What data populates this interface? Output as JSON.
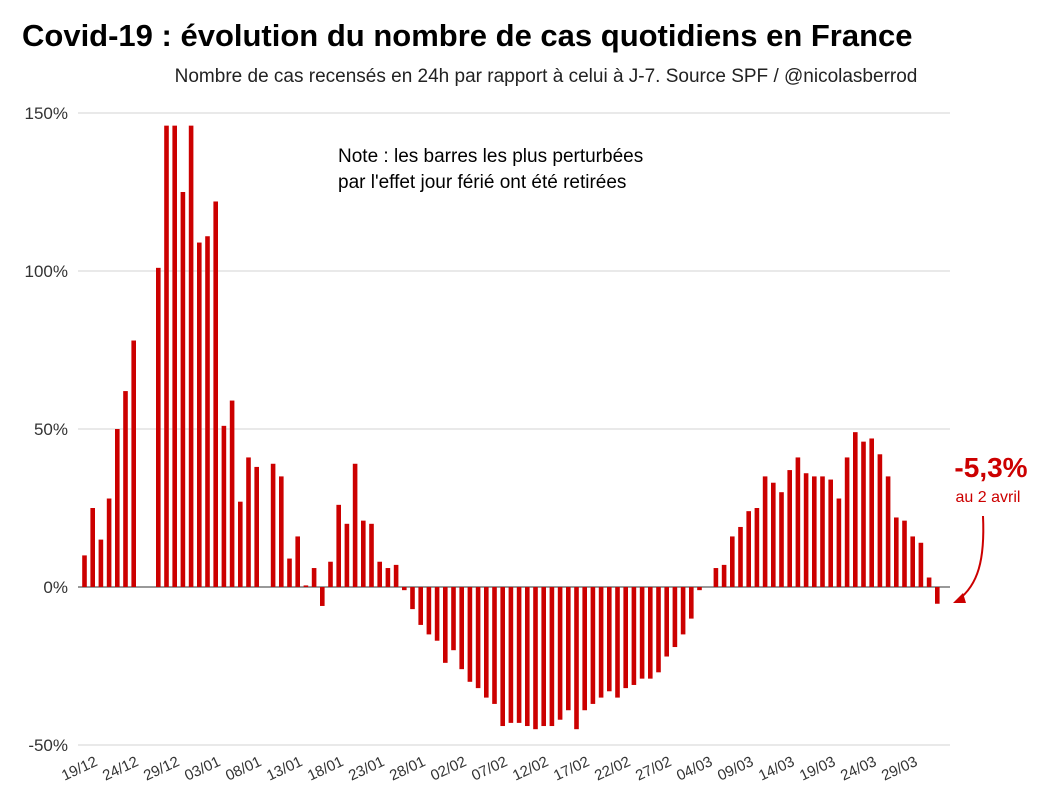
{
  "chart_data": {
    "type": "bar",
    "title": "Covid-19 : évolution du nombre de cas quotidiens en France",
    "subtitle": "Nombre de cas recensés en 24h par rapport à celui à J-7. Source SPF / @nicolasberrod",
    "note_lines": [
      "Note : les barres les plus perturbées",
      "par l'effet jour férié ont été retirées"
    ],
    "ylim": [
      -50,
      150
    ],
    "yticks": [
      150,
      100,
      50,
      0,
      -50
    ],
    "ytick_labels": [
      "150%",
      "100%",
      "50%",
      "0%",
      "-50%"
    ],
    "grid": true,
    "bar_color": "#cc0000",
    "x_tick_labels": [
      "19/12",
      "24/12",
      "29/12",
      "03/01",
      "08/01",
      "13/01",
      "18/01",
      "23/01",
      "28/01",
      "02/02",
      "07/02",
      "12/02",
      "17/02",
      "22/02",
      "27/02",
      "04/03",
      "09/03",
      "14/03",
      "19/03",
      "24/03",
      "29/03"
    ],
    "x_tick_start": "19/12",
    "x_tick_step_days": 5,
    "start_date": "19/12",
    "end_date": "02/04",
    "unit": "%",
    "values": [
      10,
      25,
      15,
      28,
      50,
      62,
      78,
      null,
      null,
      101,
      146,
      146,
      125,
      146,
      109,
      111,
      122,
      51,
      59,
      27,
      41,
      38,
      null,
      39,
      35,
      9,
      16,
      0.5,
      6,
      -6,
      8,
      26,
      20,
      39,
      21,
      20,
      8,
      6,
      7,
      -1,
      -7,
      -12,
      -15,
      -17,
      -24,
      -20,
      -26,
      -30,
      -32,
      -35,
      -37,
      -44,
      -43,
      -43,
      -44,
      -45,
      -44,
      -44,
      -42,
      -39,
      -45,
      -39,
      -37,
      -35,
      -33,
      -35,
      -32,
      -31,
      -29,
      -29,
      -27,
      -22,
      -19,
      -15,
      -10,
      -1,
      null,
      6,
      7,
      16,
      19,
      24,
      25,
      35,
      33,
      30,
      37,
      41,
      36,
      35,
      35,
      34,
      28,
      41,
      49,
      46,
      47,
      42,
      35,
      22,
      21,
      16,
      14,
      3,
      -5.3
    ],
    "annotation": {
      "value_label": "-5,3%",
      "date_label": "au 2 avril"
    }
  }
}
